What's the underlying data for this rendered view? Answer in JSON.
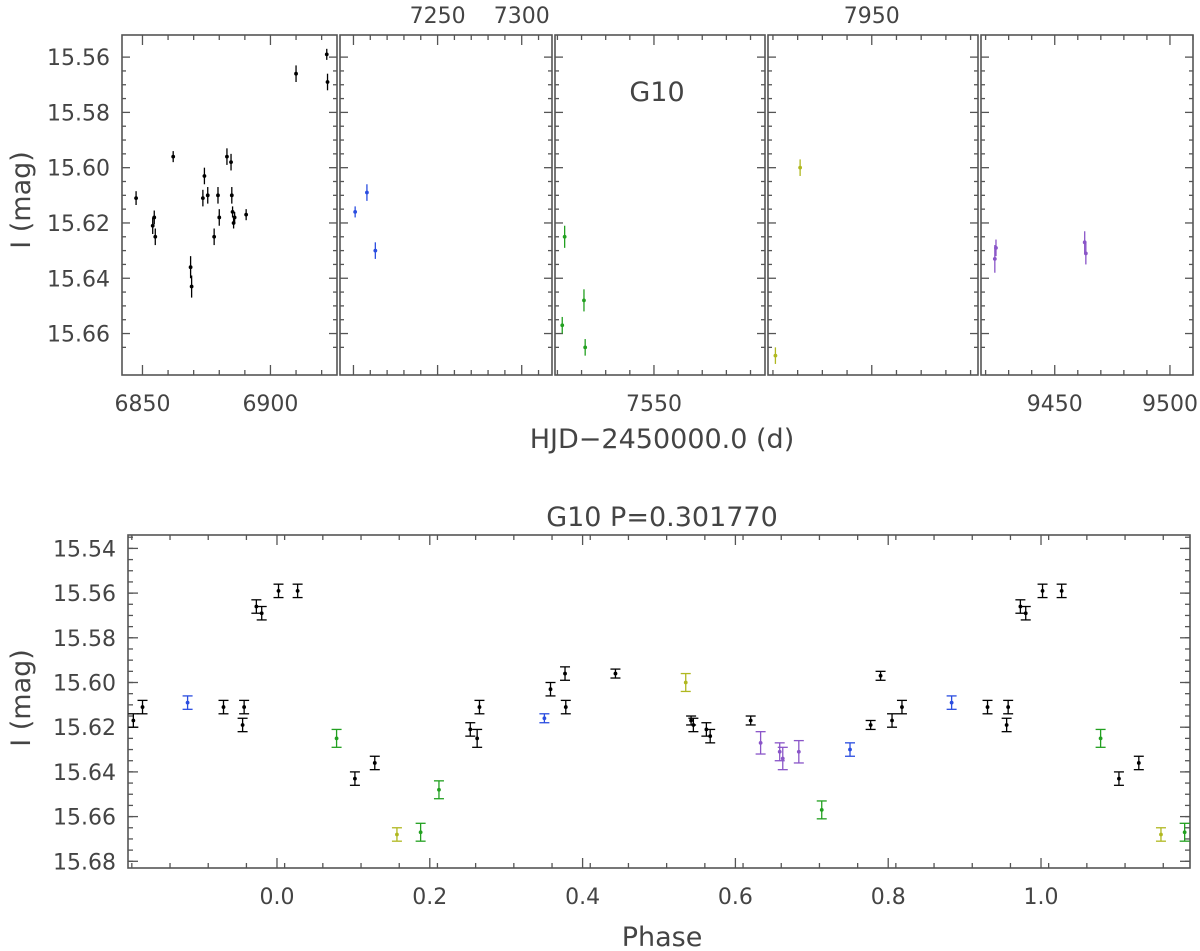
{
  "chart_data": [
    {
      "type": "scatter",
      "title": "",
      "annotation": "G10",
      "xlabel": "HJD−2450000.0 (d)",
      "ylabel": "I (mag)",
      "ylim": [
        15.675,
        15.552
      ],
      "yticks": [
        15.56,
        15.58,
        15.6,
        15.62,
        15.64,
        15.66
      ],
      "ytick_labels": [
        "15.56",
        "15.58",
        "15.60",
        "15.62",
        "15.64",
        "15.66"
      ],
      "grid": false,
      "panels": [
        {
          "xlim": [
            6842,
            6926
          ],
          "bottom_ticks": [
            6850,
            6900
          ],
          "bottom_tick_labels": [
            "6850",
            "6900"
          ],
          "top_ticks": [],
          "top_tick_labels": [],
          "series": [
            {
              "color": "#000000",
              "points": [
                {
                  "x": 6847.5,
                  "y": 15.611,
                  "err": 0.0025
                },
                {
                  "x": 6854.0,
                  "y": 15.621,
                  "err": 0.003
                },
                {
                  "x": 6854.6,
                  "y": 15.618,
                  "err": 0.0025
                },
                {
                  "x": 6855.0,
                  "y": 15.625,
                  "err": 0.003
                },
                {
                  "x": 6862.0,
                  "y": 15.596,
                  "err": 0.002
                },
                {
                  "x": 6868.8,
                  "y": 15.636,
                  "err": 0.004
                },
                {
                  "x": 6869.2,
                  "y": 15.643,
                  "err": 0.004
                },
                {
                  "x": 6873.6,
                  "y": 15.611,
                  "err": 0.003
                },
                {
                  "x": 6874.2,
                  "y": 15.603,
                  "err": 0.003
                },
                {
                  "x": 6875.5,
                  "y": 15.61,
                  "err": 0.003
                },
                {
                  "x": 6878.0,
                  "y": 15.625,
                  "err": 0.003
                },
                {
                  "x": 6879.5,
                  "y": 15.61,
                  "err": 0.003
                },
                {
                  "x": 6880.0,
                  "y": 15.618,
                  "err": 0.003
                },
                {
                  "x": 6883.0,
                  "y": 15.596,
                  "err": 0.003
                },
                {
                  "x": 6884.6,
                  "y": 15.598,
                  "err": 0.003
                },
                {
                  "x": 6884.9,
                  "y": 15.61,
                  "err": 0.003
                },
                {
                  "x": 6885.2,
                  "y": 15.616,
                  "err": 0.002
                },
                {
                  "x": 6885.6,
                  "y": 15.62,
                  "err": 0.002
                },
                {
                  "x": 6886.0,
                  "y": 15.618,
                  "err": 0.002
                },
                {
                  "x": 6890.5,
                  "y": 15.617,
                  "err": 0.002
                },
                {
                  "x": 6910.0,
                  "y": 15.566,
                  "err": 0.003
                },
                {
                  "x": 6922.0,
                  "y": 15.559,
                  "err": 0.002
                },
                {
                  "x": 6922.3,
                  "y": 15.569,
                  "err": 0.003
                }
              ]
            }
          ]
        },
        {
          "xlim": [
            7192,
            7318
          ],
          "bottom_ticks": [],
          "bottom_tick_labels": [],
          "top_ticks": [
            7250,
            7300
          ],
          "top_tick_labels": [
            "7250",
            "7300"
          ],
          "series": [
            {
              "color": "#2a4de0",
              "points": [
                {
                  "x": 7201.0,
                  "y": 15.616,
                  "err": 0.002
                },
                {
                  "x": 7208.0,
                  "y": 15.609,
                  "err": 0.003
                },
                {
                  "x": 7213.0,
                  "y": 15.63,
                  "err": 0.003
                }
              ]
            }
          ]
        },
        {
          "xlim": [
            7509,
            7596
          ],
          "bottom_ticks": [
            7550
          ],
          "bottom_tick_labels": [
            "7550"
          ],
          "top_ticks": [],
          "top_tick_labels": [],
          "series": [
            {
              "color": "#22a020",
              "points": [
                {
                  "x": 7512.0,
                  "y": 15.657,
                  "err": 0.003
                },
                {
                  "x": 7513.0,
                  "y": 15.625,
                  "err": 0.004
                },
                {
                  "x": 7521.0,
                  "y": 15.648,
                  "err": 0.004
                },
                {
                  "x": 7521.5,
                  "y": 15.665,
                  "err": 0.003
                }
              ]
            }
          ]
        },
        {
          "xlim": [
            7908,
            7993
          ],
          "bottom_ticks": [],
          "bottom_tick_labels": [],
          "top_ticks": [
            7950
          ],
          "top_tick_labels": [
            "7950"
          ],
          "series": [
            {
              "color": "#b0b820",
              "points": [
                {
                  "x": 7911.0,
                  "y": 15.668,
                  "err": 0.003
                },
                {
                  "x": 7921.0,
                  "y": 15.6,
                  "err": 0.003
                }
              ]
            }
          ]
        },
        {
          "xlim": [
            9418,
            9510
          ],
          "bottom_ticks": [
            9450,
            9500
          ],
          "bottom_tick_labels": [
            "9450",
            "9500"
          ],
          "top_ticks": [],
          "top_tick_labels": [],
          "series": [
            {
              "color": "#8a55c8",
              "points": [
                {
                  "x": 9424.0,
                  "y": 15.633,
                  "err": 0.005
                },
                {
                  "x": 9424.5,
                  "y": 15.629,
                  "err": 0.003
                },
                {
                  "x": 9463.0,
                  "y": 15.627,
                  "err": 0.004
                },
                {
                  "x": 9463.5,
                  "y": 15.631,
                  "err": 0.004
                }
              ]
            }
          ]
        }
      ]
    },
    {
      "type": "scatter",
      "title": "G10 P=0.301770",
      "xlabel": "Phase",
      "ylabel": "I (mag)",
      "xlim": [
        -0.195,
        1.195
      ],
      "ylim": [
        15.683,
        15.534
      ],
      "xticks": [
        0.0,
        0.2,
        0.4,
        0.6,
        0.8,
        1.0
      ],
      "xtick_labels": [
        "0.0",
        "0.2",
        "0.4",
        "0.6",
        "0.8",
        "1.0"
      ],
      "yticks": [
        15.54,
        15.56,
        15.58,
        15.6,
        15.62,
        15.64,
        15.66,
        15.68
      ],
      "ytick_labels": [
        "15.54",
        "15.56",
        "15.58",
        "15.60",
        "15.62",
        "15.64",
        "15.66",
        "15.68"
      ],
      "grid": false,
      "series": [
        {
          "color": "#000000",
          "points": [
            {
              "x": -0.188,
              "y": 15.617,
              "err": 0.003
            },
            {
              "x": -0.176,
              "y": 15.611,
              "err": 0.003
            },
            {
              "x": -0.07,
              "y": 15.611,
              "err": 0.003
            },
            {
              "x": -0.045,
              "y": 15.619,
              "err": 0.003
            },
            {
              "x": -0.043,
              "y": 15.611,
              "err": 0.003
            },
            {
              "x": -0.027,
              "y": 15.566,
              "err": 0.003
            },
            {
              "x": -0.02,
              "y": 15.569,
              "err": 0.003
            },
            {
              "x": 0.002,
              "y": 15.559,
              "err": 0.003
            },
            {
              "x": 0.027,
              "y": 15.559,
              "err": 0.003
            },
            {
              "x": 0.102,
              "y": 15.643,
              "err": 0.003
            },
            {
              "x": 0.128,
              "y": 15.636,
              "err": 0.003
            },
            {
              "x": 0.253,
              "y": 15.621,
              "err": 0.003
            },
            {
              "x": 0.262,
              "y": 15.625,
              "err": 0.004
            },
            {
              "x": 0.265,
              "y": 15.611,
              "err": 0.003
            },
            {
              "x": 0.358,
              "y": 15.603,
              "err": 0.003
            },
            {
              "x": 0.377,
              "y": 15.596,
              "err": 0.003
            },
            {
              "x": 0.378,
              "y": 15.611,
              "err": 0.003
            },
            {
              "x": 0.443,
              "y": 15.596,
              "err": 0.002
            },
            {
              "x": 0.542,
              "y": 15.617,
              "err": 0.002
            },
            {
              "x": 0.545,
              "y": 15.619,
              "err": 0.003
            },
            {
              "x": 0.562,
              "y": 15.621,
              "err": 0.003
            },
            {
              "x": 0.567,
              "y": 15.624,
              "err": 0.003
            },
            {
              "x": 0.62,
              "y": 15.617,
              "err": 0.002
            },
            {
              "x": 0.777,
              "y": 15.619,
              "err": 0.002
            },
            {
              "x": 0.79,
              "y": 15.597,
              "err": 0.002
            },
            {
              "x": 0.805,
              "y": 15.617,
              "err": 0.003
            },
            {
              "x": 0.818,
              "y": 15.611,
              "err": 0.003
            },
            {
              "x": 0.93,
              "y": 15.611,
              "err": 0.003
            },
            {
              "x": 0.955,
              "y": 15.619,
              "err": 0.003
            },
            {
              "x": 0.957,
              "y": 15.611,
              "err": 0.003
            },
            {
              "x": 0.973,
              "y": 15.566,
              "err": 0.003
            },
            {
              "x": 0.98,
              "y": 15.569,
              "err": 0.003
            },
            {
              "x": 1.002,
              "y": 15.559,
              "err": 0.003
            },
            {
              "x": 1.027,
              "y": 15.559,
              "err": 0.003
            },
            {
              "x": 1.102,
              "y": 15.643,
              "err": 0.003
            },
            {
              "x": 1.128,
              "y": 15.636,
              "err": 0.003
            }
          ]
        },
        {
          "color": "#2a4de0",
          "points": [
            {
              "x": -0.117,
              "y": 15.609,
              "err": 0.003
            },
            {
              "x": 0.35,
              "y": 15.616,
              "err": 0.002
            },
            {
              "x": 0.75,
              "y": 15.63,
              "err": 0.003
            },
            {
              "x": 0.883,
              "y": 15.609,
              "err": 0.003
            }
          ]
        },
        {
          "color": "#22a020",
          "points": [
            {
              "x": 0.078,
              "y": 15.625,
              "err": 0.004
            },
            {
              "x": 0.188,
              "y": 15.667,
              "err": 0.004
            },
            {
              "x": 0.212,
              "y": 15.648,
              "err": 0.004
            },
            {
              "x": 0.713,
              "y": 15.657,
              "err": 0.004
            },
            {
              "x": 1.078,
              "y": 15.625,
              "err": 0.004
            },
            {
              "x": 1.188,
              "y": 15.667,
              "err": 0.004
            }
          ]
        },
        {
          "color": "#b0b820",
          "points": [
            {
              "x": 0.157,
              "y": 15.668,
              "err": 0.003
            },
            {
              "x": 0.535,
              "y": 15.6,
              "err": 0.004
            },
            {
              "x": 1.157,
              "y": 15.668,
              "err": 0.003
            }
          ]
        },
        {
          "color": "#8a55c8",
          "points": [
            {
              "x": 0.633,
              "y": 15.627,
              "err": 0.005
            },
            {
              "x": 0.658,
              "y": 15.631,
              "err": 0.004
            },
            {
              "x": 0.662,
              "y": 15.634,
              "err": 0.005
            },
            {
              "x": 0.683,
              "y": 15.631,
              "err": 0.005
            }
          ]
        }
      ]
    }
  ]
}
